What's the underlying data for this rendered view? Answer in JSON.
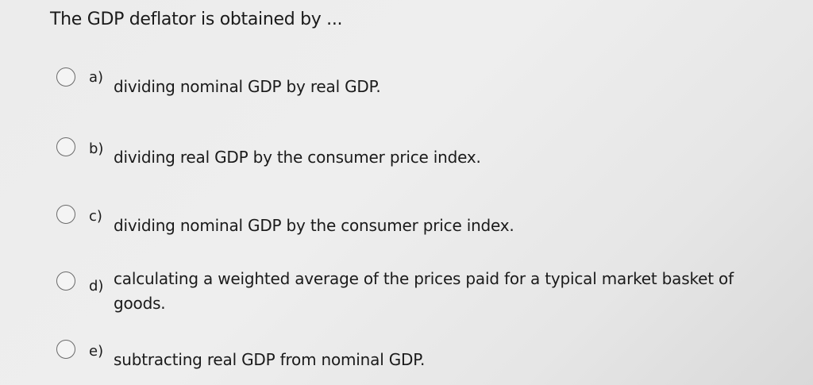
{
  "question": "The GDP deflator is obtained by ...",
  "options": [
    {
      "label": "a)",
      "text": "dividing nominal GDP by real GDP."
    },
    {
      "label": "b)",
      "text": "dividing real GDP by the consumer price index."
    },
    {
      "label": "c)",
      "text": "dividing nominal GDP by the consumer price index."
    },
    {
      "label": "d)",
      "text": "calculating a weighted average of the prices paid for a typical market basket of goods."
    },
    {
      "label": "e)",
      "text": "subtracting real GDP from nominal GDP."
    }
  ]
}
